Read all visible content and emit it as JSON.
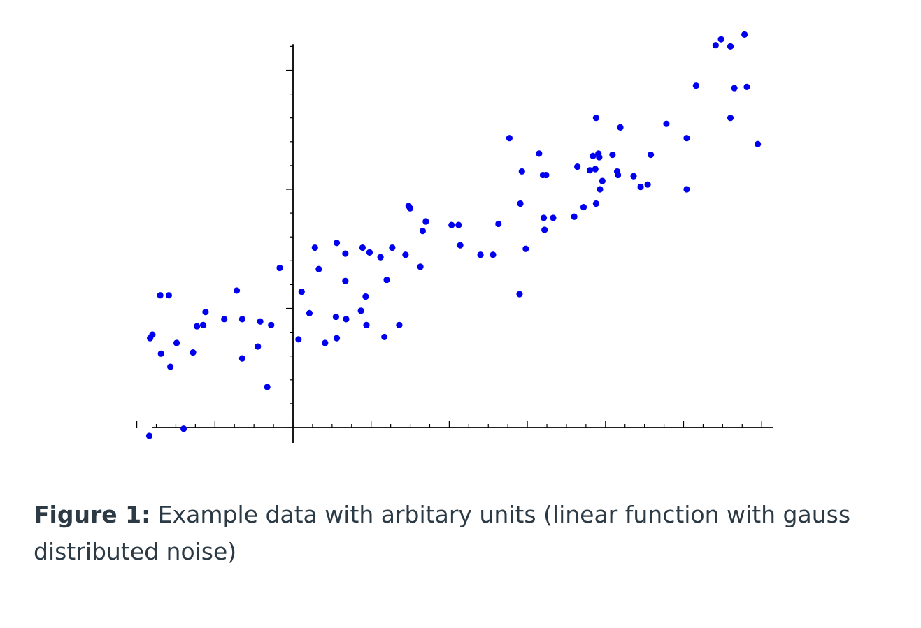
{
  "caption": {
    "label": "Figure 1:",
    "text": "Example data with arbitary units (linear function with gauss distributed noise)"
  },
  "colors": {
    "points": "#0000ee",
    "axes": "#000000"
  },
  "chart_data": {
    "type": "scatter",
    "title": "",
    "xlabel": "",
    "ylabel": "",
    "xlim": [
      -2.2,
      6.1
    ],
    "ylim": [
      -0.1,
      3.5
    ],
    "x_ticks_major": [
      -2,
      -1,
      0,
      1,
      2,
      3,
      4,
      5,
      6
    ],
    "x_ticks_minor_step": 0.25,
    "y_ticks_major": [
      0,
      1,
      2,
      3
    ],
    "y_ticks_minor_step": 0.2,
    "tick_labels": false,
    "grid": false,
    "points": [
      [
        -1.83,
        0.75
      ],
      [
        -1.8,
        0.78
      ],
      [
        -1.7,
        1.11
      ],
      [
        -1.59,
        1.11
      ],
      [
        -1.69,
        0.62
      ],
      [
        -1.57,
        0.51
      ],
      [
        -1.49,
        0.71
      ],
      [
        -1.28,
        0.63
      ],
      [
        -1.23,
        0.85
      ],
      [
        -1.15,
        0.86
      ],
      [
        -1.12,
        0.97
      ],
      [
        -0.88,
        0.91
      ],
      [
        -0.72,
        1.15
      ],
      [
        -0.65,
        0.91
      ],
      [
        -0.65,
        0.58
      ],
      [
        -0.45,
        0.68
      ],
      [
        -0.42,
        0.89
      ],
      [
        -0.33,
        0.34
      ],
      [
        -0.28,
        0.86
      ],
      [
        -0.17,
        1.34
      ],
      [
        -1.84,
        -0.07
      ],
      [
        -1.4,
        -0.01
      ],
      [
        0.07,
        0.74
      ],
      [
        0.11,
        1.14
      ],
      [
        0.21,
        0.96
      ],
      [
        0.28,
        1.51
      ],
      [
        0.33,
        1.33
      ],
      [
        0.41,
        0.71
      ],
      [
        0.55,
        0.93
      ],
      [
        0.56,
        0.75
      ],
      [
        0.56,
        1.55
      ],
      [
        0.67,
        1.46
      ],
      [
        0.67,
        1.23
      ],
      [
        0.68,
        0.91
      ],
      [
        0.87,
        0.98
      ],
      [
        0.89,
        1.51
      ],
      [
        0.93,
        1.1
      ],
      [
        0.94,
        0.86
      ],
      [
        0.98,
        1.47
      ],
      [
        1.12,
        1.43
      ],
      [
        1.17,
        0.76
      ],
      [
        1.2,
        1.24
      ],
      [
        1.27,
        1.51
      ],
      [
        1.36,
        0.86
      ],
      [
        1.44,
        1.45
      ],
      [
        1.48,
        1.86
      ],
      [
        1.5,
        1.84
      ],
      [
        1.63,
        1.35
      ],
      [
        1.66,
        1.65
      ],
      [
        1.7,
        1.73
      ],
      [
        2.03,
        1.7
      ],
      [
        2.12,
        1.7
      ],
      [
        2.14,
        1.53
      ],
      [
        2.4,
        1.45
      ],
      [
        2.56,
        1.45
      ],
      [
        2.63,
        1.71
      ],
      [
        2.77,
        2.43
      ],
      [
        2.9,
        1.12
      ],
      [
        2.91,
        1.88
      ],
      [
        2.93,
        2.15
      ],
      [
        2.98,
        1.5
      ],
      [
        3.15,
        2.3
      ],
      [
        3.2,
        2.12
      ],
      [
        3.24,
        2.12
      ],
      [
        3.21,
        1.76
      ],
      [
        3.22,
        1.66
      ],
      [
        3.33,
        1.76
      ],
      [
        3.6,
        1.77
      ],
      [
        3.64,
        2.19
      ],
      [
        3.72,
        1.85
      ],
      [
        3.8,
        2.16
      ],
      [
        3.84,
        2.28
      ],
      [
        3.87,
        2.17
      ],
      [
        3.88,
        2.6
      ],
      [
        3.88,
        1.88
      ],
      [
        3.91,
        2.3
      ],
      [
        3.92,
        2.27
      ],
      [
        3.93,
        2.0
      ],
      [
        3.96,
        2.07
      ],
      [
        4.09,
        2.29
      ],
      [
        4.15,
        2.15
      ],
      [
        4.16,
        2.12
      ],
      [
        4.19,
        2.52
      ],
      [
        4.36,
        2.11
      ],
      [
        4.45,
        2.02
      ],
      [
        4.54,
        2.04
      ],
      [
        4.58,
        2.29
      ],
      [
        4.78,
        2.55
      ],
      [
        5.04,
        2.43
      ],
      [
        5.04,
        2.0
      ],
      [
        5.16,
        2.87
      ],
      [
        5.41,
        3.21
      ],
      [
        5.48,
        3.26
      ],
      [
        5.6,
        3.2
      ],
      [
        5.6,
        2.6
      ],
      [
        5.65,
        2.85
      ],
      [
        5.78,
        3.3
      ],
      [
        5.81,
        2.86
      ],
      [
        5.95,
        2.38
      ]
    ]
  }
}
